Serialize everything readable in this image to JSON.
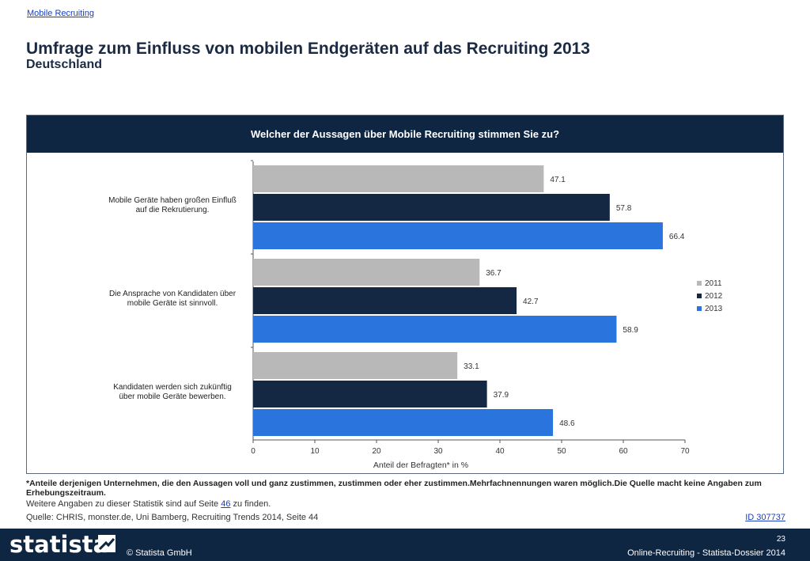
{
  "breadcrumb": "Mobile Recruiting",
  "title": "Umfrage zum Einfluss von mobilen Endgeräten auf das Recruiting 2013",
  "subtitle": "Deutschland",
  "chart_header": "Welcher der Aussagen über Mobile Recruiting stimmen Sie zu?",
  "chart_data": {
    "type": "bar",
    "orientation": "horizontal",
    "categories": [
      [
        "Mobile Geräte haben großen Einfluß",
        "auf die Rekrutierung."
      ],
      [
        "Die Ansprache von Kandidaten über",
        "mobile Geräte ist sinnvoll."
      ],
      [
        "Kandidaten werden sich zukünftig",
        "über mobile Geräte bewerben."
      ]
    ],
    "series": [
      {
        "name": "2011",
        "color": "#b8b8b8",
        "values": [
          47.1,
          36.7,
          33.1
        ]
      },
      {
        "name": "2012",
        "color": "#142743",
        "values": [
          57.8,
          42.7,
          37.9
        ]
      },
      {
        "name": "2013",
        "color": "#2a75dd",
        "values": [
          66.4,
          58.9,
          48.6
        ]
      }
    ],
    "xlabel": "Anteil der Befragten* in %",
    "xlim": [
      0,
      70
    ],
    "xticks": [
      0,
      10,
      20,
      30,
      40,
      50,
      60,
      70
    ],
    "legend_position": "right",
    "grid": false
  },
  "footnote": "*Anteile derjenigen Unternehmen, die den Aussagen voll und ganz zustimmen, zustimmen oder eher zustimmen.Mehrfachnennungen waren möglich.Die Quelle macht keine Angaben zum Erhebungszeitraum.",
  "more_info": {
    "before": "Weitere Angaben zu dieser Statistik sind auf Seite",
    "link": "46",
    "after": "zu finden."
  },
  "source": "Quelle: CHRIS, monster.de, Uni Bamberg, Recruiting Trends 2014, Seite 44",
  "id_link": "ID 307737",
  "footer": {
    "logo": "statista",
    "copyright": "© Statista GmbH",
    "page_number": "23",
    "dossier": "Online-Recruiting - Statista-Dossier 2014"
  }
}
